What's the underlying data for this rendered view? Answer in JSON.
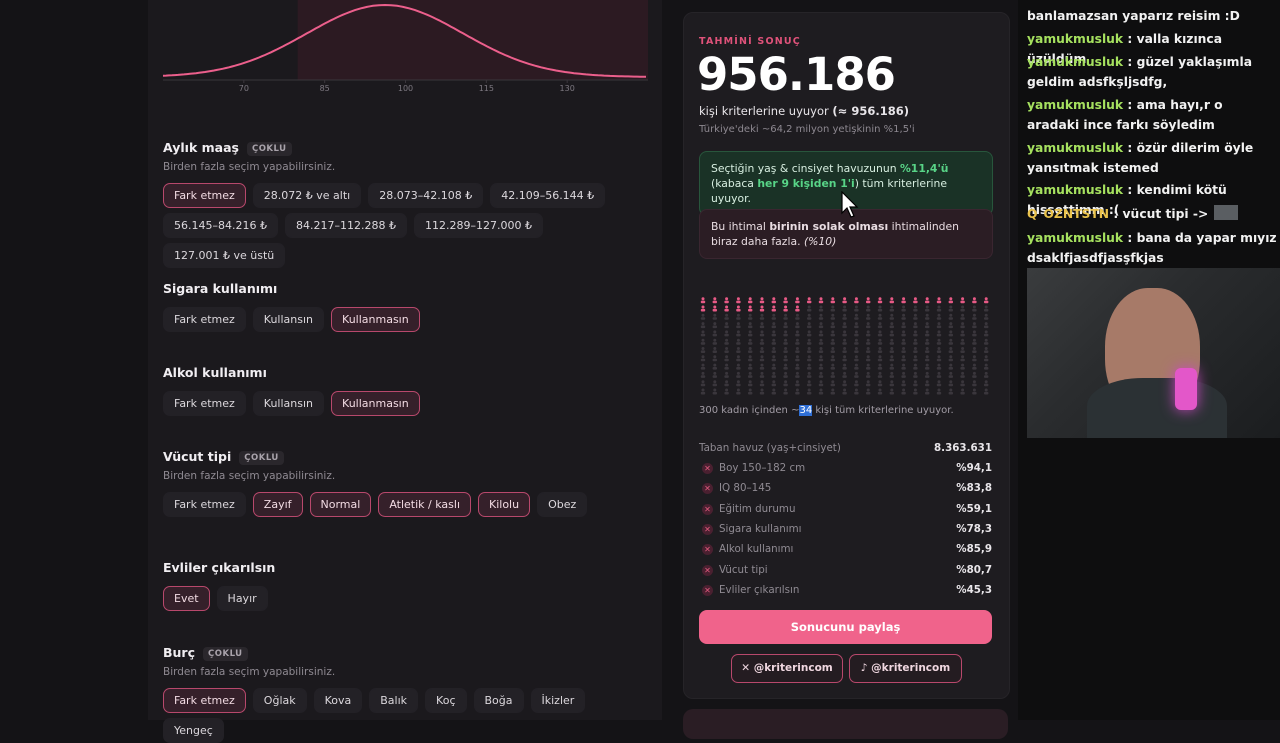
{
  "iq_chart": {
    "xlim": [
      55,
      145
    ],
    "xticks": [
      70,
      85,
      100,
      115,
      130
    ],
    "range": [
      80,
      145
    ]
  },
  "filters": [
    {
      "title": "Aylık maaş",
      "badge": "ÇOKLU",
      "hint": "Birden fazla seçim yapabilirsiniz.",
      "options": [
        {
          "label": "Fark etmez",
          "selected": true
        },
        {
          "label": "28.072 ₺ ve altı",
          "selected": false
        },
        {
          "label": "28.073–42.108 ₺",
          "selected": false
        },
        {
          "label": "42.109–56.144 ₺",
          "selected": false
        },
        {
          "label": "56.145–84.216 ₺",
          "selected": false
        },
        {
          "label": "84.217–112.288 ₺",
          "selected": false
        },
        {
          "label": "112.289–127.000 ₺",
          "selected": false
        },
        {
          "label": "127.001 ₺ ve üstü",
          "selected": false
        }
      ]
    },
    {
      "title": "Sigara kullanımı",
      "options": [
        {
          "label": "Fark etmez",
          "selected": false
        },
        {
          "label": "Kullansın",
          "selected": false
        },
        {
          "label": "Kullanmasın",
          "selected": true
        }
      ]
    },
    {
      "title": "Alkol kullanımı",
      "options": [
        {
          "label": "Fark etmez",
          "selected": false
        },
        {
          "label": "Kullansın",
          "selected": false
        },
        {
          "label": "Kullanmasın",
          "selected": true
        }
      ]
    },
    {
      "title": "Vücut tipi",
      "badge": "ÇOKLU",
      "hint": "Birden fazla seçim yapabilirsiniz.",
      "options": [
        {
          "label": "Fark etmez",
          "selected": false
        },
        {
          "label": "Zayıf",
          "selected": true
        },
        {
          "label": "Normal",
          "selected": true
        },
        {
          "label": "Atletik / kaslı",
          "selected": true
        },
        {
          "label": "Kilolu",
          "selected": true
        },
        {
          "label": "Obez",
          "selected": false
        }
      ]
    },
    {
      "title": "Evliler çıkarılsın",
      "options": [
        {
          "label": "Evet",
          "selected": true
        },
        {
          "label": "Hayır",
          "selected": false
        }
      ]
    },
    {
      "title": "Burç",
      "badge": "ÇOKLU",
      "hint": "Birden fazla seçim yapabilirsiniz.",
      "options": [
        {
          "label": "Fark etmez",
          "selected": true
        },
        {
          "label": "Oğlak",
          "selected": false
        },
        {
          "label": "Kova",
          "selected": false
        },
        {
          "label": "Balık",
          "selected": false
        },
        {
          "label": "Koç",
          "selected": false
        },
        {
          "label": "Boğa",
          "selected": false
        },
        {
          "label": "İkizler",
          "selected": false
        },
        {
          "label": "Yengeç",
          "selected": false
        }
      ]
    }
  ],
  "result": {
    "eyebrow": "TAHMİNİ SONUÇ",
    "count": "956.186",
    "sub": [
      "kişi kriterlerine uyuyor ",
      "(≈ 956.186)"
    ],
    "share_of_adults": "Türkiye'deki ~64,2 milyon yetişkinin %1,5'i",
    "green": [
      "Seçtiğin yaş & cinsiyet havuzunun ",
      "%11,4'ü",
      " (kabaca ",
      "her 9 kişiden 1'i",
      ") tüm kriterlerine uyuyor."
    ],
    "compare": [
      "Bu ihtimal ",
      "birinin solak olması",
      " ihtimalinden biraz daha fazla. ",
      "(%10)"
    ],
    "waffle": {
      "total": 300,
      "matched": 34,
      "text": [
        " kadın içinden ~",
        " kişi tüm kriterlerine uyuyor."
      ]
    },
    "base": {
      "label": "Taban havuz (yaş+cinsiyet)",
      "value": "8.363.631"
    },
    "breakdown": [
      {
        "label": "Boy 150–182 cm",
        "value": "%94,1"
      },
      {
        "label": "IQ 80–145",
        "value": "%83,8"
      },
      {
        "label": "Eğitim durumu",
        "value": "%59,1"
      },
      {
        "label": "Sigara kullanımı",
        "value": "%78,3"
      },
      {
        "label": "Alkol kullanımı",
        "value": "%85,9"
      },
      {
        "label": "Vücut tipi",
        "value": "%80,7"
      },
      {
        "label": "Evliler çıkarılsın",
        "value": "%45,3"
      }
    ],
    "share_button": "Sonucunu paylaş",
    "socials": [
      "@kriterincom",
      "@kriterincom"
    ]
  },
  "chat": [
    {
      "text": "banlamazsan yaparız reisim :D"
    },
    {
      "user": "yamukmusluk",
      "text": ": valla kızınca üzüldüm"
    },
    {
      "user": "yamukmusluk",
      "text": ": güzel yaklaşımla geldim adsfkşljsdfg,"
    },
    {
      "user": "yamukmusluk",
      "text": ": ama hayı,r o aradaki ince farkı söyledim"
    },
    {
      "user": "yamukmusluk",
      "text": ": özür dilerim öyle yansıtmak istemed"
    },
    {
      "user": "yamukmusluk",
      "text": ": kendimi kötü hissettimm :("
    },
    {
      "user": "OZNTSTN",
      "text": ": vücut tipi ->",
      "badge": "Q"
    },
    {
      "user": "yamukmusluk",
      "text": ": bana da yapar mıyız dsaklfjasdfjasşfkjas"
    }
  ]
}
